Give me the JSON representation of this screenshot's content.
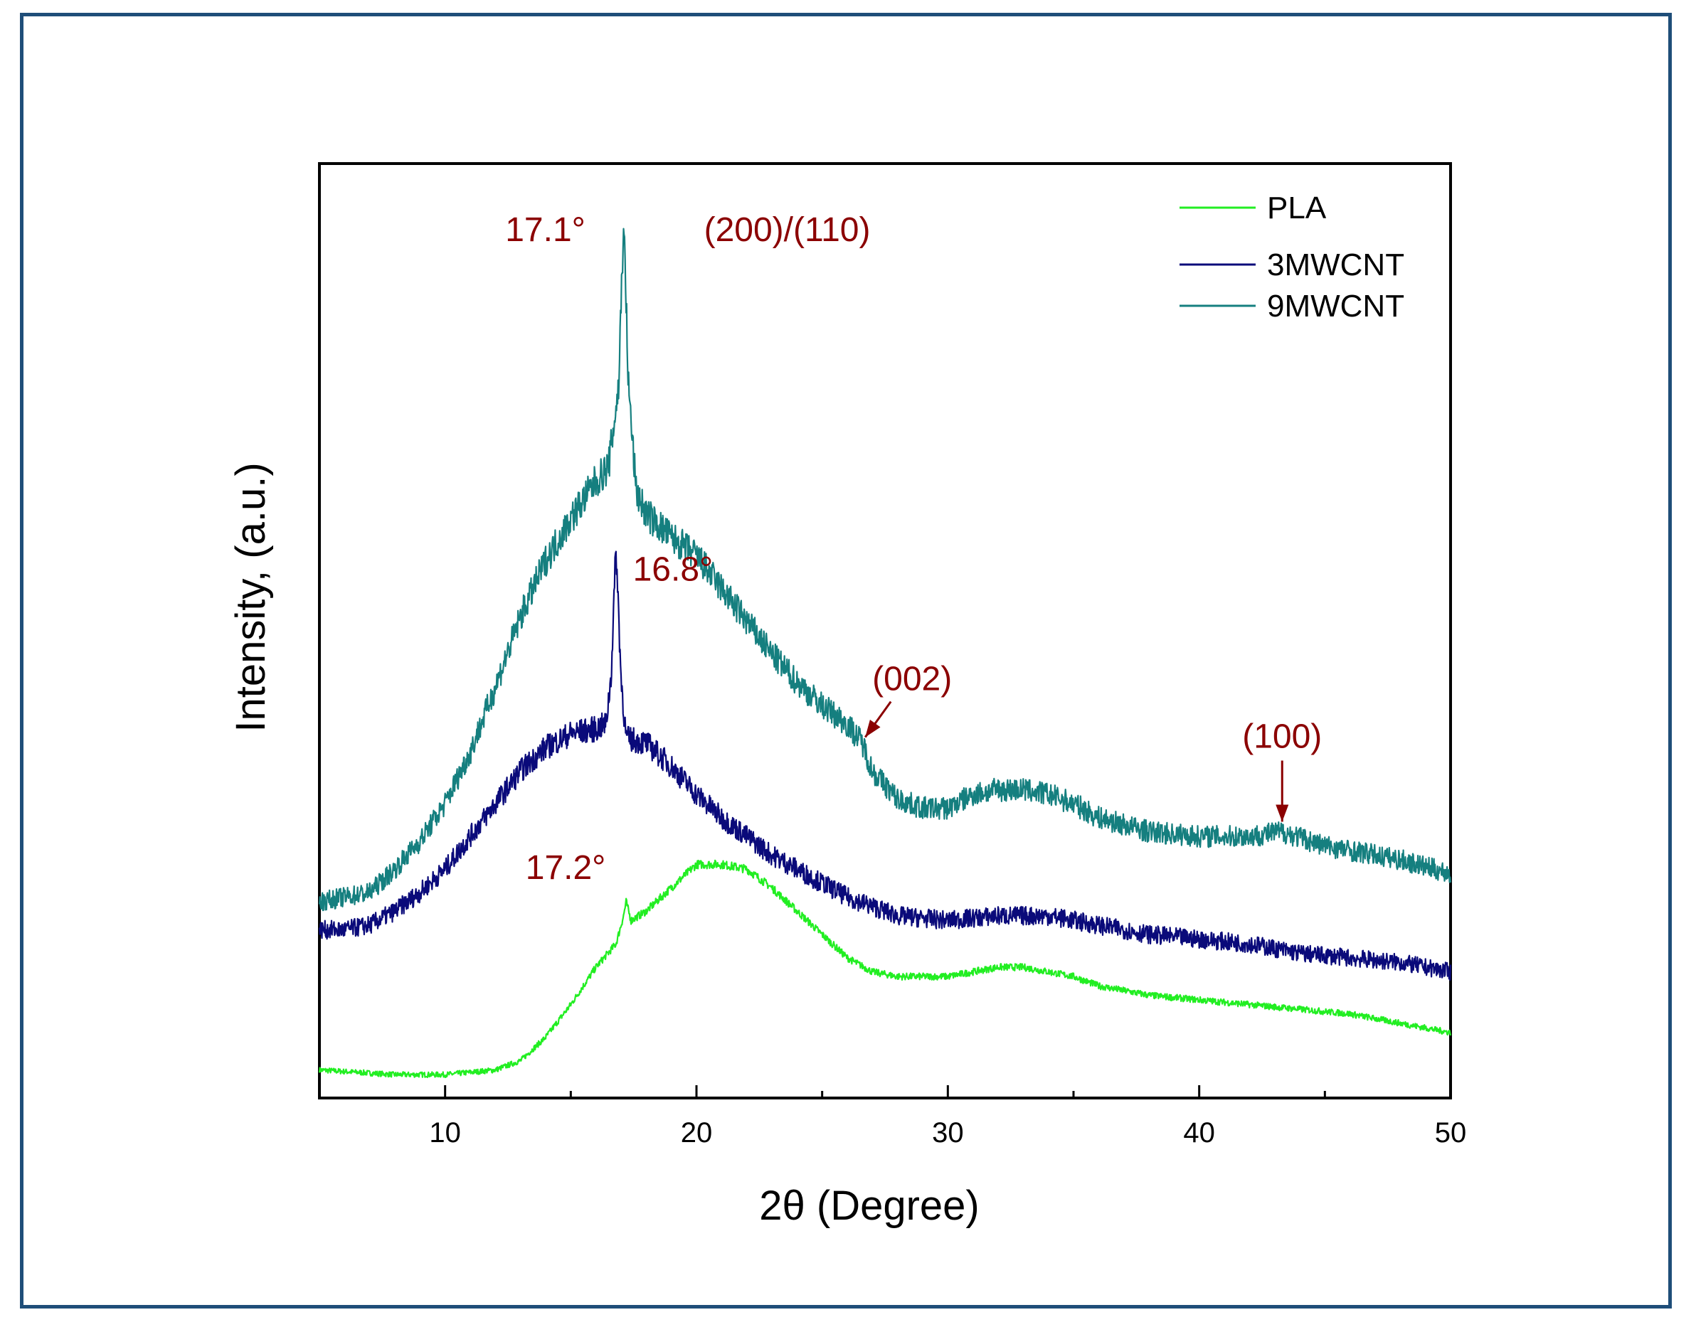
{
  "chart_data": {
    "type": "line",
    "title": "",
    "xlabel": "2θ (Degree)",
    "ylabel": "Intensity, (a.u.)",
    "xlim": [
      5,
      50
    ],
    "ylim": [
      0,
      100
    ],
    "x_ticks": [
      10,
      20,
      30,
      40,
      50
    ],
    "y_ticks": [],
    "grid": false,
    "legend_position": "top-right",
    "series": [
      {
        "name": "PLA",
        "color": "#22ee22",
        "points": [
          [
            5,
            3.0
          ],
          [
            8,
            2.5
          ],
          [
            10,
            2.5
          ],
          [
            12,
            3.0
          ],
          [
            13,
            4.0
          ],
          [
            14,
            6.5
          ],
          [
            15,
            10.0
          ],
          [
            16,
            14.0
          ],
          [
            16.8,
            16.5
          ],
          [
            17.1,
            19.5
          ],
          [
            17.2,
            21.0
          ],
          [
            17.4,
            19.0
          ],
          [
            18,
            20.0
          ],
          [
            19,
            22.5
          ],
          [
            20,
            25.0
          ],
          [
            21,
            25.0
          ],
          [
            22,
            24.5
          ],
          [
            23,
            22.5
          ],
          [
            24,
            20.0
          ],
          [
            25,
            17.5
          ],
          [
            26,
            15.0
          ],
          [
            27,
            13.5
          ],
          [
            28,
            13.0
          ],
          [
            29,
            13.0
          ],
          [
            30,
            13.0
          ],
          [
            31,
            13.5
          ],
          [
            32,
            14.0
          ],
          [
            33,
            14.0
          ],
          [
            34,
            13.5
          ],
          [
            35,
            13.0
          ],
          [
            36,
            12.0
          ],
          [
            38,
            11.0
          ],
          [
            40,
            10.5
          ],
          [
            42,
            10.0
          ],
          [
            44,
            9.5
          ],
          [
            46,
            9.0
          ],
          [
            48,
            8.0
          ],
          [
            50,
            7.0
          ]
        ]
      },
      {
        "name": "3MWCNT",
        "color": "#0a0a7a",
        "points": [
          [
            5,
            18.0
          ],
          [
            6,
            18.0
          ],
          [
            7,
            18.5
          ],
          [
            8,
            20.0
          ],
          [
            9,
            22.0
          ],
          [
            10,
            24.5
          ],
          [
            11,
            28.0
          ],
          [
            12,
            31.5
          ],
          [
            13,
            35.0
          ],
          [
            14,
            37.5
          ],
          [
            15,
            39.0
          ],
          [
            16,
            39.5
          ],
          [
            16.4,
            40.0
          ],
          [
            16.6,
            45.0
          ],
          [
            16.8,
            59.0
          ],
          [
            17.0,
            45.0
          ],
          [
            17.2,
            38.5
          ],
          [
            18,
            38.0
          ],
          [
            19,
            35.5
          ],
          [
            20,
            32.5
          ],
          [
            21,
            30.0
          ],
          [
            22,
            28.0
          ],
          [
            23,
            26.0
          ],
          [
            24,
            24.5
          ],
          [
            25,
            23.0
          ],
          [
            26,
            21.5
          ],
          [
            27,
            20.5
          ],
          [
            28,
            19.5
          ],
          [
            30,
            19.0
          ],
          [
            32,
            19.5
          ],
          [
            34,
            19.5
          ],
          [
            36,
            18.5
          ],
          [
            38,
            17.5
          ],
          [
            40,
            17.0
          ],
          [
            42,
            16.5
          ],
          [
            44,
            15.5
          ],
          [
            46,
            15.0
          ],
          [
            48,
            14.5
          ],
          [
            50,
            13.5
          ]
        ]
      },
      {
        "name": "9MWCNT",
        "color": "#157f7f",
        "points": [
          [
            5,
            21.0
          ],
          [
            6,
            21.5
          ],
          [
            7,
            22.0
          ],
          [
            8,
            24.5
          ],
          [
            9,
            27.5
          ],
          [
            10,
            31.5
          ],
          [
            11,
            37.0
          ],
          [
            12,
            44.0
          ],
          [
            13,
            51.5
          ],
          [
            14,
            57.5
          ],
          [
            15,
            62.0
          ],
          [
            16,
            66.0
          ],
          [
            16.5,
            67.5
          ],
          [
            16.9,
            76.0
          ],
          [
            17.1,
            94.0
          ],
          [
            17.3,
            76.0
          ],
          [
            17.6,
            65.0
          ],
          [
            18,
            62.5
          ],
          [
            19,
            60.0
          ],
          [
            20,
            58.0
          ],
          [
            21,
            54.5
          ],
          [
            22,
            51.0
          ],
          [
            23,
            47.5
          ],
          [
            24,
            44.5
          ],
          [
            25,
            42.0
          ],
          [
            26,
            40.0
          ],
          [
            26.6,
            38.0
          ],
          [
            27,
            35.0
          ],
          [
            28,
            32.0
          ],
          [
            29,
            31.0
          ],
          [
            30,
            31.0
          ],
          [
            31,
            32.5
          ],
          [
            32,
            33.0
          ],
          [
            33,
            33.0
          ],
          [
            34,
            32.5
          ],
          [
            35,
            31.5
          ],
          [
            36,
            30.0
          ],
          [
            38,
            28.5
          ],
          [
            40,
            28.0
          ],
          [
            42,
            28.0
          ],
          [
            43.3,
            28.5
          ],
          [
            45,
            27.0
          ],
          [
            48,
            25.5
          ],
          [
            50,
            24.0
          ]
        ]
      }
    ],
    "annotations": [
      {
        "text": "17.1°",
        "x": 17.1,
        "y": 94.0
      },
      {
        "text": "(200)/(110)",
        "x": 17.1,
        "y": 94.0
      },
      {
        "text": "16.8°",
        "x": 16.8,
        "y": 59.0
      },
      {
        "text": "17.2°",
        "x": 17.2,
        "y": 21.0
      },
      {
        "text": "(002)",
        "x": 26.6,
        "y": 38.0,
        "arrow": true
      },
      {
        "text": "(100)",
        "x": 43.3,
        "y": 28.5,
        "arrow": true
      }
    ],
    "annotation_color": "#8b0000"
  }
}
